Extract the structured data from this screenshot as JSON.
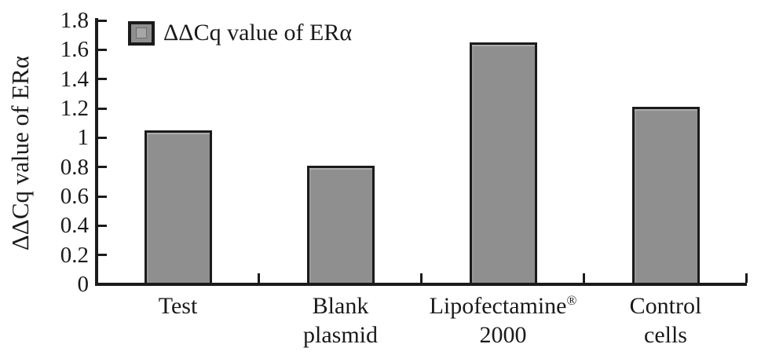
{
  "chart_data": {
    "type": "bar",
    "title": "",
    "xlabel": "",
    "ylabel": "ΔΔCq value of ERα",
    "legend_entries": [
      {
        "label": "ΔΔCq value of ERα",
        "swatch_color": "#8f8f8f"
      }
    ],
    "legend_position": "top-left-inside",
    "grid": false,
    "categories": [
      "Test",
      "Blank plasmid",
      "Lipofectamine® 2000",
      "Control cells"
    ],
    "categories_display": [
      {
        "lines": [
          {
            "text": "Test"
          }
        ]
      },
      {
        "lines": [
          {
            "text": "Blank"
          },
          {
            "text": "plasmid"
          }
        ]
      },
      {
        "lines": [
          {
            "text": "Lipofectamine",
            "sup": "®"
          },
          {
            "text": "2000"
          }
        ]
      },
      {
        "lines": [
          {
            "text": "Control"
          },
          {
            "text": "cells"
          }
        ]
      }
    ],
    "values": [
      1.05,
      0.81,
      1.65,
      1.21
    ],
    "ylim": [
      0,
      1.8
    ],
    "ytick_step": 0.2,
    "yticks": [
      "0",
      "0.2",
      "0.4",
      "0.6",
      "0.8",
      "1",
      "1.2",
      "1.4",
      "1.6",
      "1.8"
    ],
    "colors": {
      "bar_fill": "#8f8f8f",
      "bar_border": "#1b1b1b",
      "axis": "#1b1b1b",
      "text": "#1a1a1a",
      "background": "#ffffff",
      "swatch_inner": "#a6a6a6"
    }
  }
}
